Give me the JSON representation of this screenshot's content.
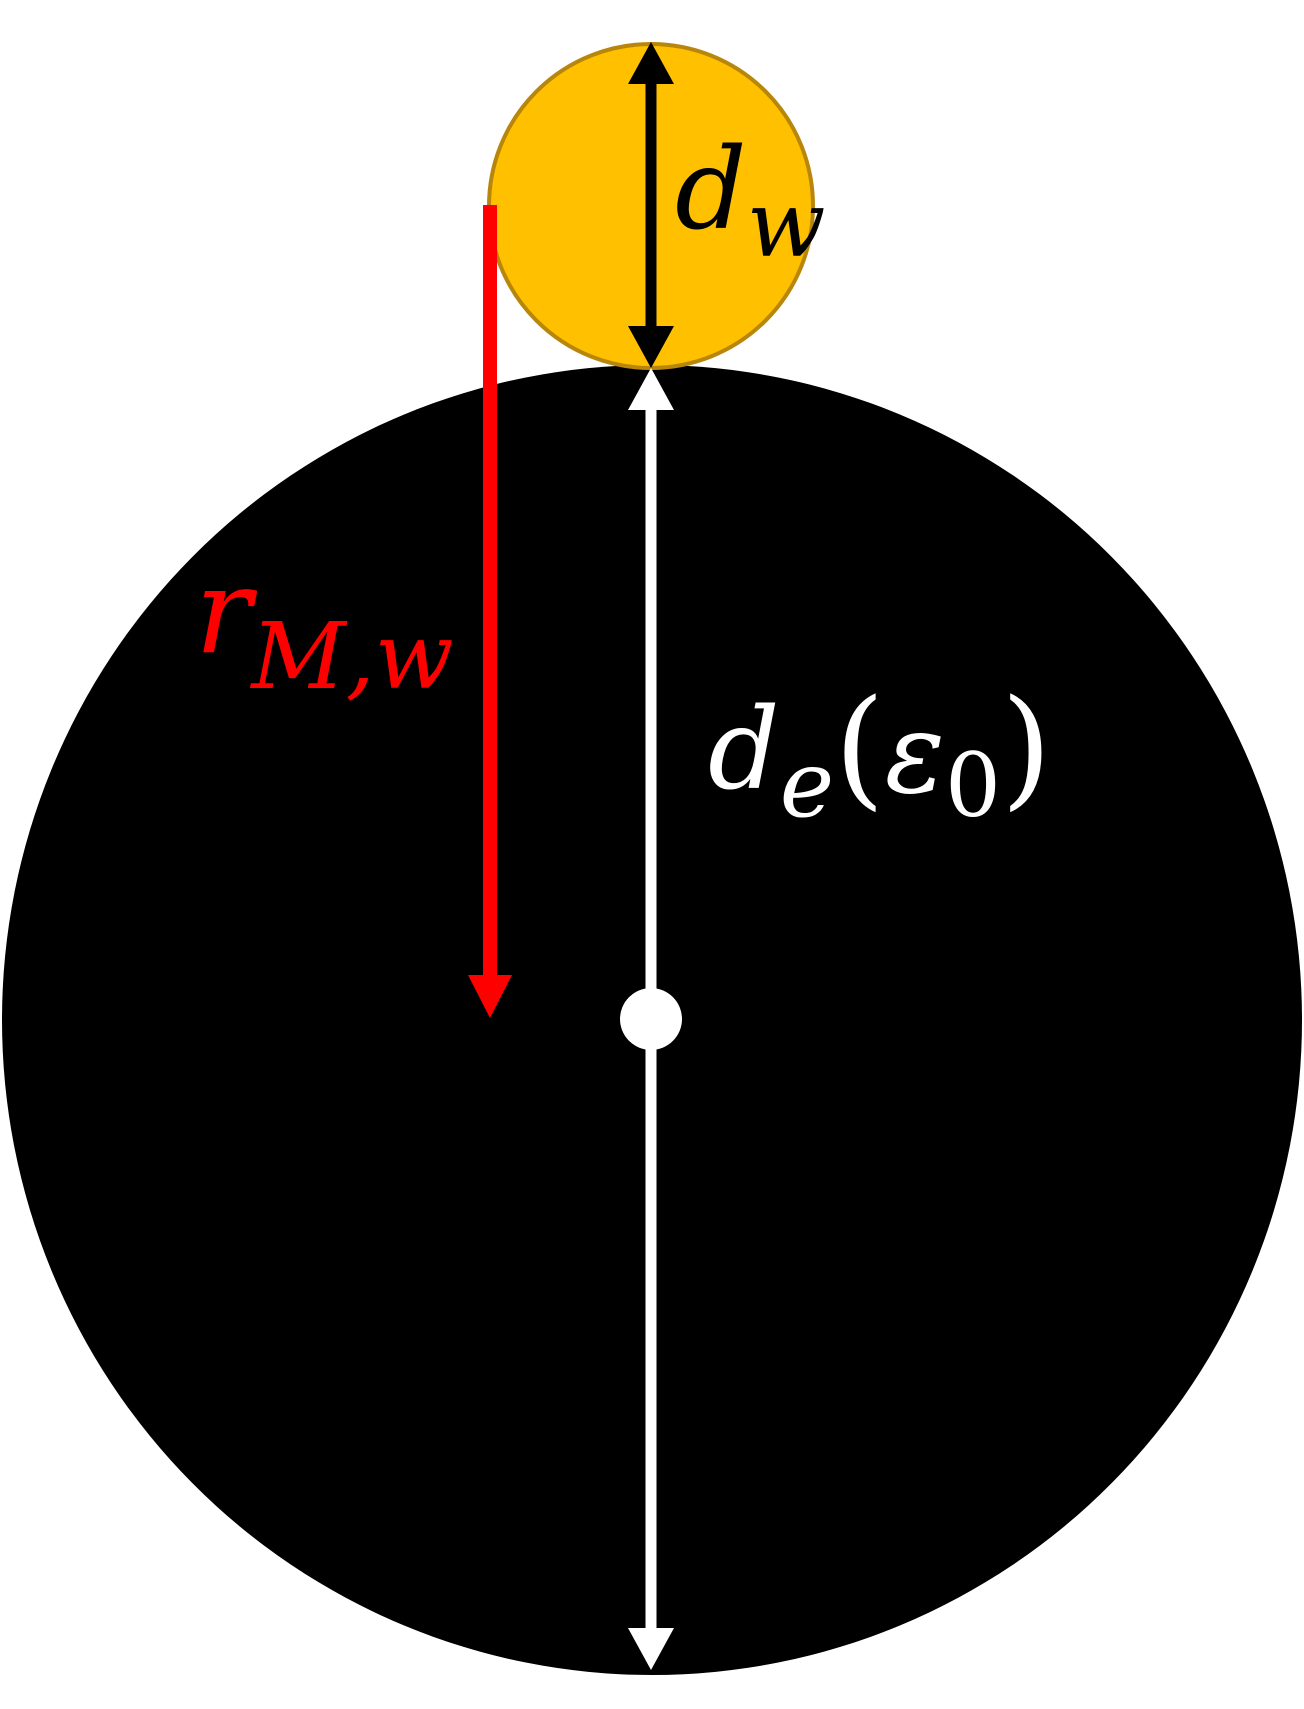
{
  "colors": {
    "background": "#ffffff",
    "large_circle_fill": "#000000",
    "small_circle_fill": "#ffc000",
    "small_circle_stroke": "#b8860b",
    "red_arrow": "#ff0000",
    "white_arrow": "#ffffff",
    "black_arrow": "#000000"
  },
  "labels": {
    "dw": {
      "main": "d",
      "sub": "w"
    },
    "de": {
      "main": "d",
      "sub": "e",
      "open": "(",
      "arg_main": "ε",
      "arg_sub": "0",
      "close": ")"
    },
    "rmw": {
      "main": "r",
      "sub": "M,w"
    }
  },
  "elements": {
    "large_circle": "large-black-circle",
    "small_circle": "small-gold-circle",
    "center_dot": "center-dot"
  }
}
